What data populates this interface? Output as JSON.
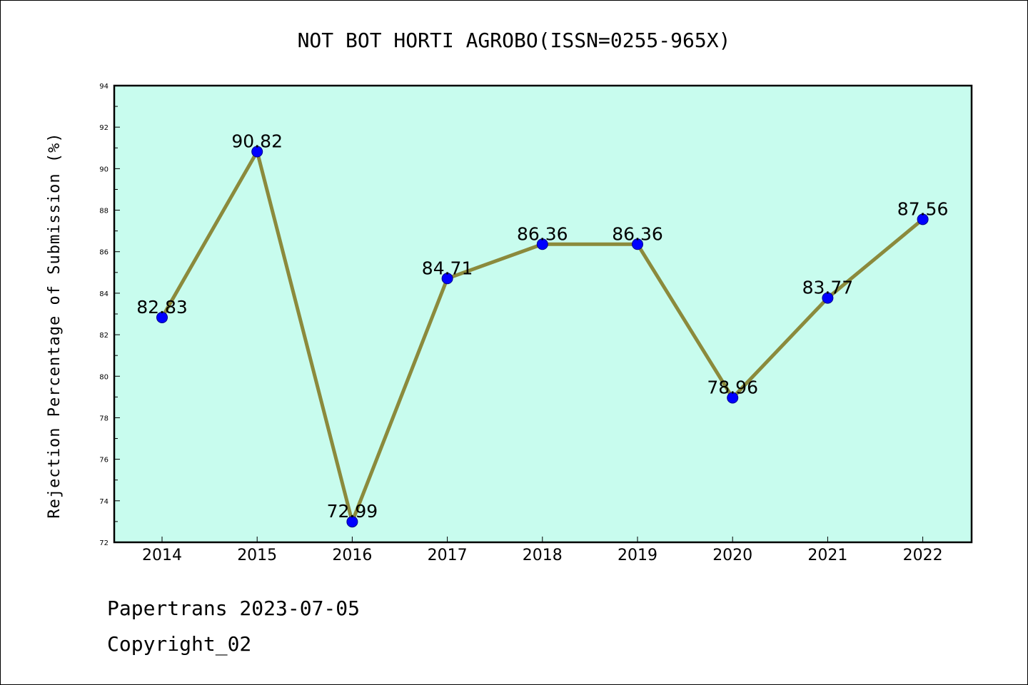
{
  "chart_data": {
    "type": "line",
    "title": "NOT BOT HORTI AGROBO(ISSN=0255-965X)",
    "xlabel": "",
    "ylabel": "Rejection Percentage of Submission (%)",
    "categories": [
      "2014",
      "2015",
      "2016",
      "2017",
      "2018",
      "2019",
      "2020",
      "2021",
      "2022"
    ],
    "values": [
      82.83,
      90.82,
      72.99,
      84.71,
      86.36,
      86.36,
      78.96,
      83.77,
      87.56
    ],
    "data_labels": [
      "82.83",
      "90.82",
      "72.99",
      "84.71",
      "86.36",
      "86.36",
      "78.96",
      "83.77",
      "87.56"
    ],
    "ylim": [
      72,
      94
    ],
    "yticks": [
      72,
      74,
      76,
      78,
      80,
      82,
      84,
      86,
      88,
      90,
      92,
      94
    ],
    "grid": false,
    "legend": "none",
    "colors": {
      "plot_background": "#c8fcee",
      "line": "#8b8a3c",
      "marker": "#0000ff",
      "marker_edge": "#00008b"
    }
  },
  "footer": {
    "line1": "Papertrans 2023-07-05",
    "line2": "Copyright_02"
  }
}
